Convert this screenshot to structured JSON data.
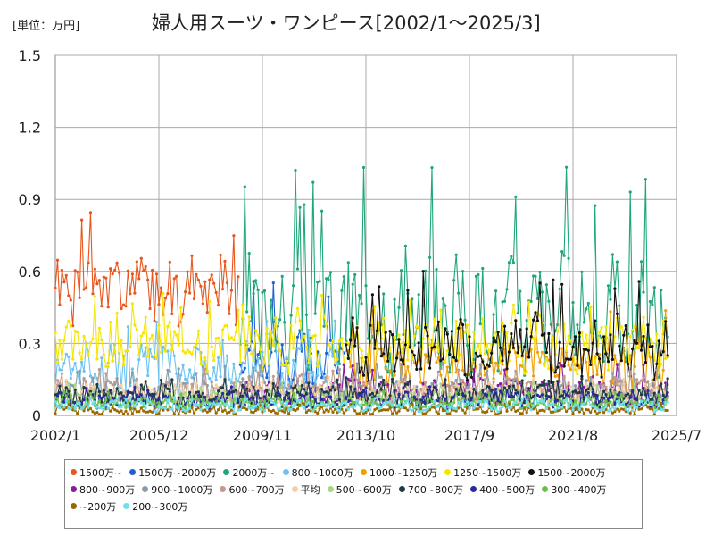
{
  "chart_data": {
    "type": "line",
    "title": "婦人用スーツ・ワンピース[2002/1～2025/3]",
    "unit_label": "[単位：万円]",
    "xlabel": "",
    "ylabel": "",
    "x_tick_labels": [
      "2002/1",
      "2005/12",
      "2009/11",
      "2013/10",
      "2017/9",
      "2021/8",
      "2025/7"
    ],
    "y_tick_labels": [
      "0",
      "0.3",
      "0.6",
      "0.9",
      "1.2",
      "1.5"
    ],
    "ylim": [
      0,
      1.5
    ],
    "x_start": "2002/1",
    "x_end": "2025/7",
    "grid": true,
    "legend_position": "bottom",
    "series": [
      {
        "name": "1500万~",
        "color": "#e8561c",
        "range": [
          "2002/1",
          "2008/12"
        ],
        "base": 0.52,
        "amp": 0.12,
        "spike": 0.89
      },
      {
        "name": "1500万~2000万",
        "color": "#1f5fd6",
        "range": [
          "2009/1",
          "2012/12"
        ],
        "base": 0.24,
        "amp": 0.12,
        "spike": 0.6
      },
      {
        "name": "2000万~",
        "color": "#1fa67a",
        "range": [
          "2009/1",
          "2025/3"
        ],
        "base": 0.42,
        "amp": 0.22,
        "spike": 1.11
      },
      {
        "name": "800~1000万",
        "color": "#6cc3f0",
        "range": [
          "2002/1",
          "2012/12"
        ],
        "base": 0.2,
        "amp": 0.09,
        "spike": 0.4
      },
      {
        "name": "1000~1250万",
        "color": "#f0a000",
        "range": [
          "2013/1",
          "2025/3"
        ],
        "base": 0.2,
        "amp": 0.09,
        "spike": 0.46
      },
      {
        "name": "1250~1500万",
        "color": "#f5e600",
        "range": [
          "2002/1",
          "2025/3"
        ],
        "base": 0.3,
        "amp": 0.1,
        "spike": 0.53
      },
      {
        "name": "1500~2000万",
        "color": "#111111",
        "range": [
          "2013/1",
          "2025/3"
        ],
        "base": 0.28,
        "amp": 0.12,
        "spike": 0.61
      },
      {
        "name": "800~900万",
        "color": "#8b1a9e",
        "range": [
          "2009/1",
          "2025/3"
        ],
        "base": 0.1,
        "amp": 0.05,
        "spike": 0.22
      },
      {
        "name": "900~1000万",
        "color": "#8c9ba8",
        "range": [
          "2002/1",
          "2025/3"
        ],
        "base": 0.1,
        "amp": 0.05,
        "spike": 0.22
      },
      {
        "name": "600~700万",
        "color": "#c49a8a",
        "range": [
          "2002/1",
          "2025/3"
        ],
        "base": 0.1,
        "amp": 0.05,
        "spike": 0.2
      },
      {
        "name": "平均",
        "color": "#f3cfa5",
        "range": [
          "2002/1",
          "2025/3"
        ],
        "base": 0.09,
        "amp": 0.04,
        "spike": 0.16
      },
      {
        "name": "500~600万",
        "color": "#a8d888",
        "range": [
          "2002/1",
          "2025/3"
        ],
        "base": 0.07,
        "amp": 0.03,
        "spike": 0.14
      },
      {
        "name": "700~800万",
        "color": "#1d3b44",
        "range": [
          "2002/1",
          "2025/3"
        ],
        "base": 0.08,
        "amp": 0.04,
        "spike": 0.16
      },
      {
        "name": "400~500万",
        "color": "#2a2a9c",
        "range": [
          "2002/1",
          "2025/3"
        ],
        "base": 0.06,
        "amp": 0.03,
        "spike": 0.12
      },
      {
        "name": "300~400万",
        "color": "#6cc04a",
        "range": [
          "2002/1",
          "2025/3"
        ],
        "base": 0.05,
        "amp": 0.02,
        "spike": 0.1
      },
      {
        "name": "~200万",
        "color": "#9a6a00",
        "range": [
          "2002/1",
          "2025/3"
        ],
        "base": 0.02,
        "amp": 0.015,
        "spike": 0.05
      },
      {
        "name": "200~300万",
        "color": "#6fe0e8",
        "range": [
          "2002/1",
          "2025/3"
        ],
        "base": 0.04,
        "amp": 0.02,
        "spike": 0.08
      }
    ]
  }
}
